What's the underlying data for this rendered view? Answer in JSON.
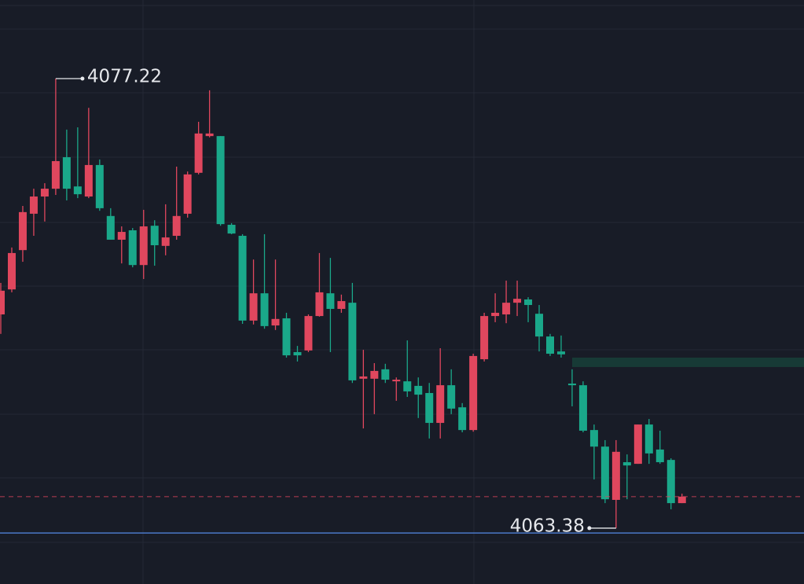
{
  "chart_data": {
    "type": "candlestick",
    "up_color": "#e0475e",
    "down_color": "#1aa88a",
    "ylim": [
      4061.66,
      4079.64
    ],
    "open": [
      4069.96,
      4070.73,
      4071.94,
      4073.06,
      4073.59,
      4073.83,
      4074.8,
      4073.9,
      4073.59,
      4074.56,
      4072.99,
      4072.26,
      4072.55,
      4071.48,
      4072.69,
      4072.07,
      4072.38,
      4073.06,
      4074.32,
      4075.45,
      4075.45,
      4072.72,
      4072.38,
      4069.77,
      4070.61,
      4069.62,
      4069.84,
      4068.8,
      4068.85,
      4069.91,
      4070.61,
      4070.13,
      4070.32,
      4067.98,
      4067.98,
      4068.27,
      4067.9,
      4067.9,
      4067.76,
      4067.54,
      4066.62,
      4067.78,
      4067.1,
      4066.4,
      4068.58,
      4069.91,
      4069.96,
      4070.32,
      4070.42,
      4069.98,
      4069.28,
      4068.82,
      4067.83,
      4067.78,
      4066.4,
      4065.89,
      4064.25,
      4065.41,
      4065.36,
      4066.57,
      4065.8,
      4065.48,
      4064.15
    ],
    "high": [
      4070.93,
      4072.02,
      4073.3,
      4073.83,
      4074.0,
      4077.22,
      4075.65,
      4075.72,
      4076.32,
      4074.73,
      4073.23,
      4072.67,
      4072.62,
      4073.18,
      4072.86,
      4073.35,
      4074.51,
      4074.36,
      4075.89,
      4076.86,
      4075.45,
      4072.77,
      4072.43,
      4071.65,
      4072.43,
      4071.65,
      4070.01,
      4068.99,
      4069.96,
      4071.85,
      4071.7,
      4070.57,
      4070.93,
      4068.87,
      4068.46,
      4068.44,
      4068.02,
      4069.16,
      4068.02,
      4067.85,
      4068.92,
      4068.27,
      4067.23,
      4068.75,
      4070.01,
      4070.61,
      4071.0,
      4071.0,
      4070.49,
      4070.25,
      4069.36,
      4069.31,
      4068.27,
      4067.9,
      4066.57,
      4066.09,
      4066.09,
      4065.65,
      4066.57,
      4066.74,
      4066.38,
      4065.53,
      4064.44
    ],
    "low": [
      4069.36,
      4070.64,
      4071.58,
      4072.38,
      4072.82,
      4073.64,
      4073.47,
      4073.54,
      4073.54,
      4073.15,
      4072.26,
      4071.53,
      4071.41,
      4071.05,
      4071.46,
      4071.78,
      4072.26,
      4072.94,
      4074.27,
      4075.41,
      4072.69,
      4072.43,
      4069.67,
      4069.65,
      4069.52,
      4069.48,
      4068.63,
      4068.51,
      4068.8,
      4069.89,
      4068.8,
      4070.01,
      4067.85,
      4066.45,
      4066.89,
      4067.85,
      4067.3,
      4067.42,
      4066.77,
      4066.14,
      4066.14,
      4066.89,
      4066.33,
      4066.35,
      4068.51,
      4069.72,
      4069.69,
      4069.91,
      4069.72,
      4068.82,
      4068.68,
      4068.63,
      4067.13,
      4066.33,
      4064.88,
      4064.15,
      4063.38,
      4064.27,
      4065.36,
      4065.36,
      4065.36,
      4063.96,
      4064.15
    ],
    "close": [
      4070.69,
      4071.85,
      4073.11,
      4073.59,
      4073.83,
      4074.68,
      4073.83,
      4073.66,
      4074.56,
      4073.23,
      4072.26,
      4072.5,
      4071.48,
      4072.67,
      4072.09,
      4072.33,
      4072.99,
      4074.27,
      4075.53,
      4075.53,
      4072.74,
      4072.45,
      4069.77,
      4070.61,
      4069.6,
      4069.82,
      4068.7,
      4068.7,
      4069.91,
      4070.64,
      4070.13,
      4070.37,
      4067.93,
      4068.05,
      4068.22,
      4067.95,
      4067.95,
      4067.59,
      4067.49,
      4066.62,
      4067.78,
      4067.06,
      4066.4,
      4068.68,
      4069.91,
      4070.01,
      4070.32,
      4070.44,
      4070.25,
      4069.28,
      4068.75,
      4068.73,
      4067.78,
      4066.38,
      4065.89,
      4064.27,
      4065.73,
      4065.31,
      4066.57,
      4065.68,
      4065.41,
      4064.15,
      4064.35
    ],
    "levels": [
      {
        "value": 4063.23,
        "color": "#4a78c8"
      }
    ],
    "zone": {
      "from": 4068.34,
      "to": 4068.63,
      "color": "#173a36"
    },
    "high_marker": 5,
    "low_marker": 56
  }
}
